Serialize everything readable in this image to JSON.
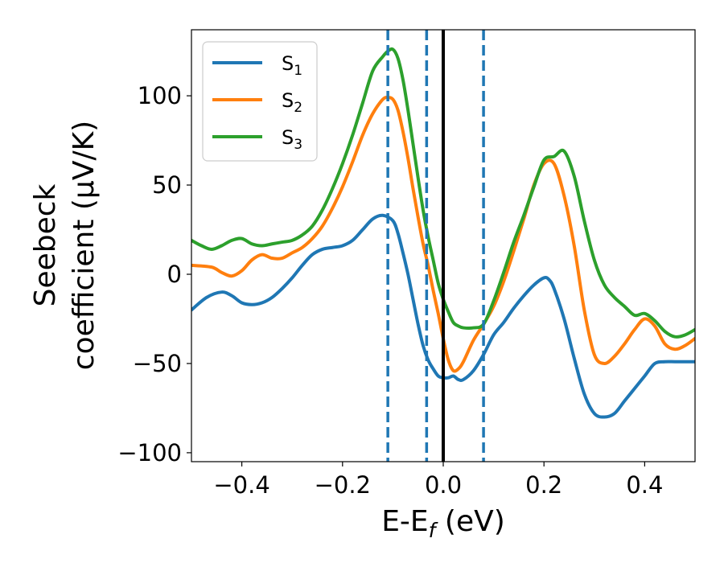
{
  "chart_data": {
    "type": "line",
    "xlabel": "E-E",
    "xlabel_sub": "f",
    "xlabel_unit": " (eV)",
    "ylabel_line1": "Seebeck",
    "ylabel_line2": "coefficient  (μV/K)",
    "xlim": [
      -0.5,
      0.5
    ],
    "ylim": [
      -105,
      137
    ],
    "xticks": [
      -0.4,
      -0.2,
      0.0,
      0.2,
      0.4
    ],
    "xtick_labels": [
      "−0.4",
      "−0.2",
      "0.0",
      "0.2",
      "0.4"
    ],
    "yticks": [
      -100,
      -50,
      0,
      50,
      100
    ],
    "ytick_labels": [
      "−100",
      "−50",
      "0",
      "50",
      "100"
    ],
    "legend_position": "upper-left",
    "series": [
      {
        "name": "S",
        "sub": "1",
        "color": "#1f77b4",
        "x": [
          -0.5,
          -0.47,
          -0.44,
          -0.42,
          -0.4,
          -0.38,
          -0.36,
          -0.34,
          -0.32,
          -0.3,
          -0.28,
          -0.26,
          -0.24,
          -0.22,
          -0.2,
          -0.18,
          -0.16,
          -0.14,
          -0.12,
          -0.1,
          -0.09,
          -0.08,
          -0.07,
          -0.06,
          -0.05,
          -0.04,
          -0.03,
          -0.02,
          -0.01,
          0.0,
          0.01,
          0.02,
          0.03,
          0.04,
          0.06,
          0.08,
          0.1,
          0.12,
          0.14,
          0.16,
          0.18,
          0.2,
          0.21,
          0.22,
          0.24,
          0.26,
          0.28,
          0.3,
          0.32,
          0.34,
          0.36,
          0.38,
          0.4,
          0.42,
          0.44,
          0.46,
          0.48,
          0.5
        ],
        "y": [
          -20,
          -13,
          -10,
          -12,
          -16,
          -17,
          -16,
          -13,
          -8,
          -2,
          5,
          11,
          14,
          15,
          16,
          19,
          25,
          31,
          33,
          30,
          23,
          12,
          0,
          -14,
          -28,
          -40,
          -48,
          -53,
          -57,
          -58,
          -58,
          -57,
          -59,
          -59,
          -54,
          -45,
          -34,
          -27,
          -19,
          -12,
          -6,
          -2,
          -3,
          -8,
          -25,
          -47,
          -67,
          -78,
          -80,
          -78,
          -71,
          -64,
          -57,
          -50,
          -49,
          -49,
          -49,
          -49
        ]
      },
      {
        "name": "S",
        "sub": "2",
        "color": "#ff7f0e",
        "x": [
          -0.5,
          -0.46,
          -0.44,
          -0.42,
          -0.4,
          -0.38,
          -0.36,
          -0.34,
          -0.32,
          -0.3,
          -0.28,
          -0.26,
          -0.24,
          -0.22,
          -0.2,
          -0.18,
          -0.16,
          -0.14,
          -0.12,
          -0.11,
          -0.1,
          -0.09,
          -0.08,
          -0.07,
          -0.06,
          -0.05,
          -0.04,
          -0.03,
          -0.02,
          -0.01,
          0.0,
          0.01,
          0.02,
          0.03,
          0.04,
          0.06,
          0.08,
          0.1,
          0.12,
          0.14,
          0.16,
          0.18,
          0.2,
          0.22,
          0.24,
          0.26,
          0.28,
          0.3,
          0.32,
          0.34,
          0.36,
          0.38,
          0.4,
          0.42,
          0.44,
          0.46,
          0.48,
          0.5
        ],
        "y": [
          5,
          4,
          1,
          -1,
          2,
          8,
          11,
          9,
          9,
          12,
          15,
          20,
          27,
          37,
          49,
          63,
          78,
          90,
          98,
          99,
          98,
          92,
          80,
          65,
          48,
          32,
          17,
          5,
          -9,
          -22,
          -36,
          -48,
          -54,
          -53,
          -49,
          -37,
          -28,
          -18,
          -4,
          13,
          31,
          50,
          62,
          62,
          44,
          16,
          -20,
          -45,
          -50,
          -46,
          -39,
          -31,
          -25,
          -29,
          -39,
          -42,
          -40,
          -36
        ]
      },
      {
        "name": "S",
        "sub": "3",
        "color": "#2ca02c",
        "x": [
          -0.5,
          -0.48,
          -0.46,
          -0.44,
          -0.42,
          -0.4,
          -0.38,
          -0.36,
          -0.34,
          -0.32,
          -0.3,
          -0.28,
          -0.26,
          -0.24,
          -0.22,
          -0.2,
          -0.18,
          -0.16,
          -0.14,
          -0.12,
          -0.11,
          -0.1,
          -0.09,
          -0.08,
          -0.07,
          -0.06,
          -0.05,
          -0.04,
          -0.03,
          -0.02,
          -0.01,
          0.0,
          0.01,
          0.02,
          0.03,
          0.04,
          0.06,
          0.08,
          0.1,
          0.12,
          0.14,
          0.16,
          0.18,
          0.2,
          0.22,
          0.24,
          0.26,
          0.28,
          0.3,
          0.32,
          0.34,
          0.36,
          0.38,
          0.4,
          0.42,
          0.44,
          0.46,
          0.48,
          0.5
        ],
        "y": [
          19,
          16,
          14,
          16,
          19,
          20,
          17,
          16,
          17,
          18,
          19,
          22,
          27,
          36,
          48,
          62,
          78,
          96,
          114,
          122,
          125,
          126,
          121,
          109,
          92,
          73,
          54,
          36,
          21,
          8,
          -5,
          -14,
          -21,
          -27,
          -29,
          -30,
          -30,
          -28,
          -15,
          1,
          18,
          33,
          49,
          64,
          66,
          69,
          55,
          30,
          8,
          -6,
          -13,
          -18,
          -23,
          -22,
          -26,
          -32,
          -35,
          -34,
          -31
        ]
      }
    ],
    "vlines": [
      {
        "x": -0.11,
        "style": "dashed",
        "color": "#1f77b4"
      },
      {
        "x": -0.033,
        "style": "dashed",
        "color": "#1f77b4"
      },
      {
        "x": 0.0,
        "style": "solid",
        "color": "#000000"
      },
      {
        "x": 0.08,
        "style": "dashed",
        "color": "#1f77b4"
      }
    ]
  }
}
